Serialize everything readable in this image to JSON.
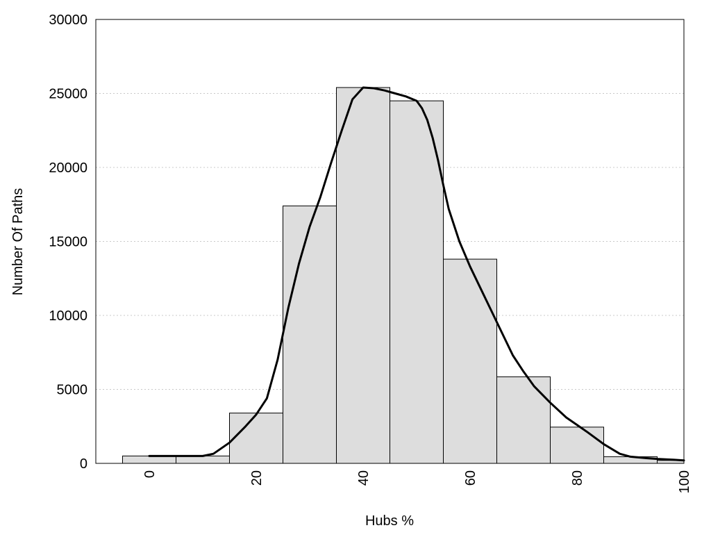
{
  "chart_data": {
    "type": "bar",
    "title": "",
    "xlabel": "Hubs %",
    "ylabel": "Number Of Paths",
    "xlim": [
      -10,
      100
    ],
    "ylim": [
      0,
      30000
    ],
    "x_ticks": [
      0,
      20,
      40,
      60,
      80,
      100
    ],
    "y_ticks": [
      0,
      5000,
      10000,
      15000,
      20000,
      25000,
      30000
    ],
    "grid": "horizontal dotted",
    "legend": "none",
    "bar_color": "#dddddd",
    "bar_edge_color": "#000000",
    "line_color": "#000000",
    "bins": [
      {
        "x_start": -5,
        "x_end": 5,
        "value": 500
      },
      {
        "x_start": 5,
        "x_end": 15,
        "value": 500
      },
      {
        "x_start": 15,
        "x_end": 25,
        "value": 3400
      },
      {
        "x_start": 25,
        "x_end": 35,
        "value": 17400
      },
      {
        "x_start": 35,
        "x_end": 45,
        "value": 25400
      },
      {
        "x_start": 45,
        "x_end": 55,
        "value": 24500
      },
      {
        "x_start": 55,
        "x_end": 65,
        "value": 13800
      },
      {
        "x_start": 65,
        "x_end": 75,
        "value": 5850
      },
      {
        "x_start": 75,
        "x_end": 85,
        "value": 2450
      },
      {
        "x_start": 85,
        "x_end": 95,
        "value": 450
      },
      {
        "x_start": 95,
        "x_end": 105,
        "value": 200
      }
    ],
    "curve": {
      "x": [
        0,
        5,
        10,
        12,
        15,
        18,
        20,
        22,
        24,
        26,
        28,
        30,
        32,
        34,
        36,
        38,
        40,
        42,
        44,
        46,
        48,
        50,
        51,
        52,
        53,
        54,
        55,
        56,
        58,
        60,
        62,
        64,
        66,
        68,
        70,
        72,
        75,
        78,
        80,
        82,
        85,
        88,
        90,
        93,
        95,
        98,
        100
      ],
      "y": [
        500,
        500,
        500,
        650,
        1400,
        2500,
        3300,
        4400,
        7000,
        10500,
        13500,
        16000,
        18000,
        20300,
        22500,
        24600,
        25400,
        25350,
        25200,
        25000,
        24800,
        24500,
        24000,
        23200,
        22000,
        20500,
        18800,
        17200,
        15000,
        13300,
        11800,
        10300,
        8800,
        7300,
        6200,
        5200,
        4100,
        3100,
        2600,
        2100,
        1300,
        650,
        450,
        350,
        300,
        250,
        200
      ]
    }
  }
}
